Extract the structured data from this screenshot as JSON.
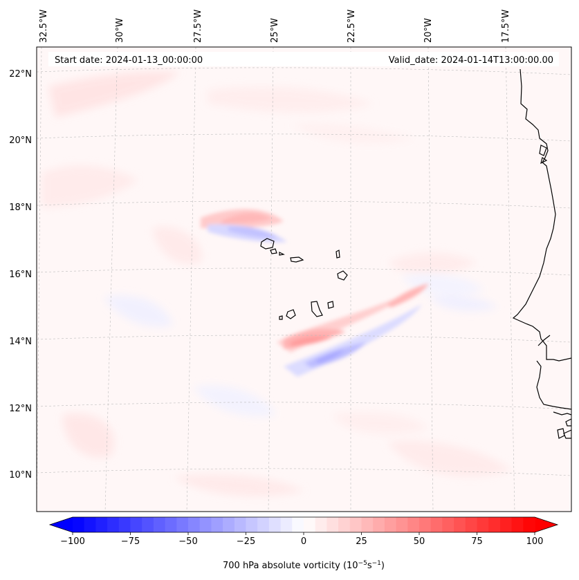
{
  "map": {
    "start_date_text": "Start date: 2024-01-13_00:00:00",
    "valid_date_text": "Valid_date: 2024-01-14T13:00:00.00",
    "lon_labels": [
      "32.5°W",
      "30°W",
      "27.5°W",
      "25°W",
      "22.5°W",
      "20°W",
      "17.5°W"
    ],
    "lat_labels": [
      "22°N",
      "20°N",
      "18°N",
      "16°N",
      "14°N",
      "12°N",
      "10°N"
    ],
    "background_color": "#fff7f7"
  },
  "colorbar": {
    "label_main": "700 hPa absolute vorticity (10",
    "label_exp1": "−5",
    "label_mid": "s",
    "label_exp2": "−1",
    "label_end": ")",
    "ticks": [
      "−100",
      "−75",
      "−50",
      "−25",
      "0",
      "25",
      "50",
      "75",
      "100"
    ],
    "vmin": -100,
    "vmax": 100,
    "step": 5,
    "low_color": "#0000ff",
    "high_color": "#ff0000"
  }
}
